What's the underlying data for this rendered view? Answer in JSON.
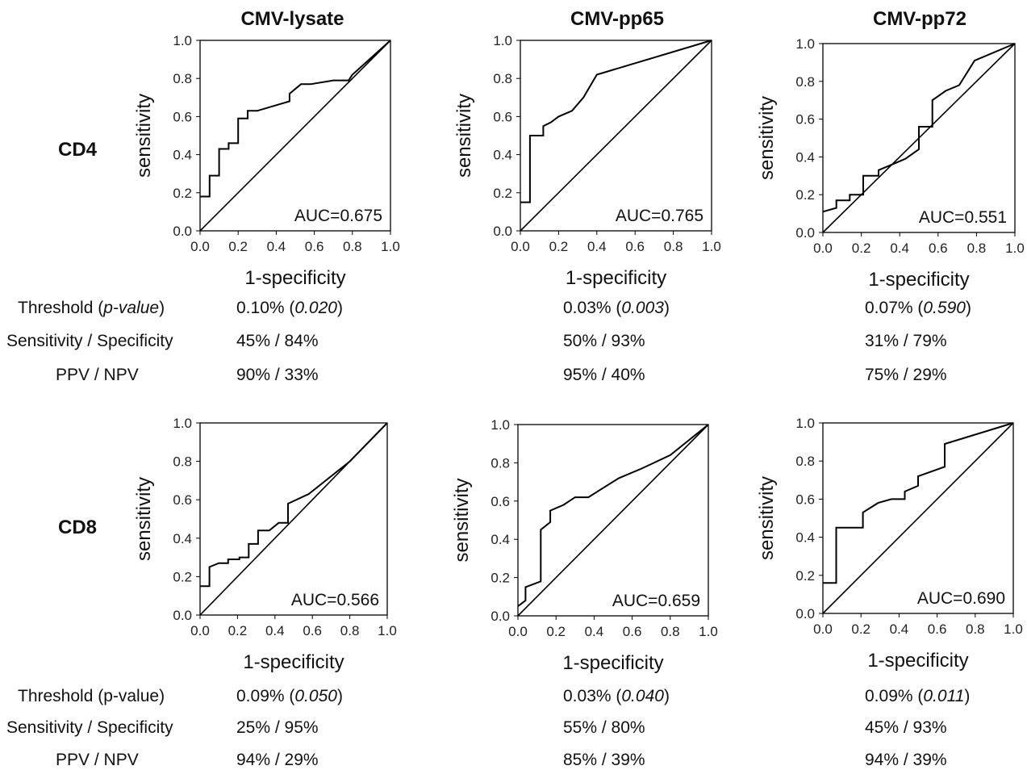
{
  "figure": {
    "columns": [
      "CMV-lysate",
      "CMV-pp65",
      "CMV-pp72"
    ],
    "rows": [
      "CD4",
      "CD8"
    ],
    "stat_labels_top": {
      "threshold_prefix": "Threshold (",
      "threshold_p": "p-value",
      "threshold_suffix": ")",
      "sens_spec": "Sensitivity / Specificity",
      "ppv_npv": "PPV / NPV"
    },
    "stat_labels_bottom": {
      "threshold": "Threshold (p-value)",
      "sens_spec": "Sensitivity / Specificity",
      "ppv_npv": "PPV / NPV"
    }
  },
  "stats": {
    "CD4": [
      {
        "threshold": "0.10%",
        "p": "0.020",
        "sens_spec": "45% / 84%",
        "ppv_npv": "90% / 33%"
      },
      {
        "threshold": "0.03%",
        "p": "0.003",
        "sens_spec": "50% / 93%",
        "ppv_npv": "95% / 40%"
      },
      {
        "threshold": "0.07%",
        "p": "0.590",
        "sens_spec": "31% / 79%",
        "ppv_npv": "75% / 29%"
      }
    ],
    "CD8": [
      {
        "threshold": "0.09%",
        "p": "0.050",
        "sens_spec": "25% / 95%",
        "ppv_npv": "94% / 29%"
      },
      {
        "threshold": "0.03%",
        "p": "0.040",
        "sens_spec": "55% / 80%",
        "ppv_npv": "85% / 39%"
      },
      {
        "threshold": "0.09%",
        "p": "0.011",
        "sens_spec": "45% / 93%",
        "ppv_npv": "94% / 39%"
      }
    ]
  },
  "chart_data": [
    {
      "type": "line",
      "row": "CD4",
      "title": "CMV-lysate",
      "xlabel": "1-specificity",
      "ylabel": "sensitivity",
      "xlim": [
        0,
        1
      ],
      "ylim": [
        0,
        1
      ],
      "grid": false,
      "annotation": "AUC=0.675",
      "xticks": [
        "0.0",
        "0.2",
        "0.4",
        "0.6",
        "0.8",
        "1.0"
      ],
      "yticks": [
        "0.0",
        "0.2",
        "0.4",
        "0.6",
        "0.8",
        "1.0"
      ],
      "roc": [
        [
          0,
          0.18
        ],
        [
          0.05,
          0.18
        ],
        [
          0.05,
          0.29
        ],
        [
          0.1,
          0.29
        ],
        [
          0.1,
          0.43
        ],
        [
          0.15,
          0.43
        ],
        [
          0.15,
          0.46
        ],
        [
          0.2,
          0.46
        ],
        [
          0.2,
          0.59
        ],
        [
          0.25,
          0.59
        ],
        [
          0.25,
          0.63
        ],
        [
          0.3,
          0.63
        ],
        [
          0.47,
          0.68
        ],
        [
          0.47,
          0.72
        ],
        [
          0.53,
          0.77
        ],
        [
          0.58,
          0.77
        ],
        [
          0.7,
          0.79
        ],
        [
          0.78,
          0.79
        ],
        [
          0.8,
          0.82
        ],
        [
          1,
          1
        ]
      ],
      "reference": [
        [
          0,
          0
        ],
        [
          1,
          1
        ]
      ]
    },
    {
      "type": "line",
      "row": "CD4",
      "title": "CMV-pp65",
      "xlabel": "1-specificity",
      "ylabel": "sensitivity",
      "xlim": [
        0,
        1
      ],
      "ylim": [
        0,
        1
      ],
      "grid": false,
      "annotation": "AUC=0.765",
      "xticks": [
        "0.0",
        "0.2",
        "0.4",
        "0.6",
        "0.8",
        "1.0"
      ],
      "yticks": [
        "0.0",
        "0.2",
        "0.4",
        "0.6",
        "0.8",
        "1.0"
      ],
      "roc": [
        [
          0,
          0.15
        ],
        [
          0.05,
          0.15
        ],
        [
          0.05,
          0.5
        ],
        [
          0.12,
          0.5
        ],
        [
          0.12,
          0.55
        ],
        [
          0.16,
          0.57
        ],
        [
          0.2,
          0.6
        ],
        [
          0.27,
          0.63
        ],
        [
          0.33,
          0.7
        ],
        [
          0.4,
          0.82
        ],
        [
          1,
          1
        ]
      ],
      "reference": [
        [
          0,
          0
        ],
        [
          1,
          1
        ]
      ]
    },
    {
      "type": "line",
      "row": "CD4",
      "title": "CMV-pp72",
      "xlabel": "1-specificity",
      "ylabel": "sensitivity",
      "xlim": [
        0,
        1
      ],
      "ylim": [
        0,
        1
      ],
      "grid": false,
      "annotation": "AUC=0.551",
      "xticks": [
        "0.0",
        "0.2",
        "0.4",
        "0.6",
        "0.8",
        "1.0"
      ],
      "yticks": [
        "0.0",
        "0.2",
        "0.4",
        "0.6",
        "0.8",
        "1.0"
      ],
      "roc": [
        [
          0,
          0.11
        ],
        [
          0.07,
          0.13
        ],
        [
          0.07,
          0.17
        ],
        [
          0.14,
          0.17
        ],
        [
          0.14,
          0.2
        ],
        [
          0.21,
          0.2
        ],
        [
          0.21,
          0.3
        ],
        [
          0.29,
          0.3
        ],
        [
          0.29,
          0.33
        ],
        [
          0.36,
          0.36
        ],
        [
          0.43,
          0.39
        ],
        [
          0.5,
          0.44
        ],
        [
          0.5,
          0.56
        ],
        [
          0.57,
          0.56
        ],
        [
          0.57,
          0.7
        ],
        [
          0.64,
          0.75
        ],
        [
          0.71,
          0.78
        ],
        [
          0.79,
          0.91
        ],
        [
          1,
          1
        ]
      ],
      "reference": [
        [
          0,
          0
        ],
        [
          1,
          1
        ]
      ]
    },
    {
      "type": "line",
      "row": "CD8",
      "title": "CMV-lysate",
      "xlabel": "1-specificity",
      "ylabel": "sensitivity",
      "xlim": [
        0,
        1
      ],
      "ylim": [
        0,
        1
      ],
      "grid": false,
      "annotation": "AUC=0.566",
      "xticks": [
        "0.0",
        "0.2",
        "0.4",
        "0.6",
        "0.8",
        "1.0"
      ],
      "yticks": [
        "0.0",
        "0.2",
        "0.4",
        "0.6",
        "0.8",
        "1.0"
      ],
      "roc": [
        [
          0,
          0.15
        ],
        [
          0.05,
          0.15
        ],
        [
          0.05,
          0.25
        ],
        [
          0.1,
          0.27
        ],
        [
          0.15,
          0.27
        ],
        [
          0.15,
          0.29
        ],
        [
          0.21,
          0.29
        ],
        [
          0.21,
          0.3
        ],
        [
          0.26,
          0.3
        ],
        [
          0.26,
          0.37
        ],
        [
          0.31,
          0.37
        ],
        [
          0.31,
          0.44
        ],
        [
          0.37,
          0.44
        ],
        [
          0.42,
          0.48
        ],
        [
          0.47,
          0.48
        ],
        [
          0.47,
          0.58
        ],
        [
          0.58,
          0.63
        ],
        [
          0.8,
          0.8
        ],
        [
          1,
          1
        ]
      ],
      "reference": [
        [
          0,
          0
        ],
        [
          1,
          1
        ]
      ]
    },
    {
      "type": "line",
      "row": "CD8",
      "title": "CMV-pp65",
      "xlabel": "1-specificity",
      "ylabel": "sensitivity",
      "xlim": [
        0,
        1
      ],
      "ylim": [
        0,
        1
      ],
      "grid": false,
      "annotation": "AUC=0.659",
      "xticks": [
        "0.0",
        "0.2",
        "0.4",
        "0.6",
        "0.8",
        "1.0"
      ],
      "yticks": [
        "0.0",
        "0.2",
        "0.4",
        "0.6",
        "0.8",
        "1.0"
      ],
      "roc": [
        [
          0,
          0.05
        ],
        [
          0.04,
          0.08
        ],
        [
          0.04,
          0.15
        ],
        [
          0.12,
          0.18
        ],
        [
          0.12,
          0.45
        ],
        [
          0.17,
          0.49
        ],
        [
          0.17,
          0.55
        ],
        [
          0.24,
          0.58
        ],
        [
          0.3,
          0.62
        ],
        [
          0.37,
          0.62
        ],
        [
          0.45,
          0.67
        ],
        [
          0.53,
          0.72
        ],
        [
          0.65,
          0.77
        ],
        [
          0.8,
          0.84
        ],
        [
          1,
          1
        ]
      ],
      "reference": [
        [
          0,
          0
        ],
        [
          1,
          1
        ]
      ]
    },
    {
      "type": "line",
      "row": "CD8",
      "title": "CMV-pp72",
      "xlabel": "1-specificity",
      "ylabel": "sensitivity",
      "xlim": [
        0,
        1
      ],
      "ylim": [
        0,
        1
      ],
      "grid": false,
      "annotation": "AUC=0.690",
      "xticks": [
        "0.0",
        "0.2",
        "0.4",
        "0.6",
        "0.8",
        "1.0"
      ],
      "yticks": [
        "0.0",
        "0.2",
        "0.4",
        "0.6",
        "0.8",
        "1.0"
      ],
      "roc": [
        [
          0,
          0.16
        ],
        [
          0.07,
          0.16
        ],
        [
          0.07,
          0.45
        ],
        [
          0.21,
          0.45
        ],
        [
          0.21,
          0.53
        ],
        [
          0.29,
          0.58
        ],
        [
          0.36,
          0.6
        ],
        [
          0.43,
          0.6
        ],
        [
          0.43,
          0.64
        ],
        [
          0.5,
          0.67
        ],
        [
          0.5,
          0.72
        ],
        [
          0.64,
          0.77
        ],
        [
          0.64,
          0.89
        ],
        [
          1,
          1
        ]
      ],
      "reference": [
        [
          0,
          0
        ],
        [
          1,
          1
        ]
      ]
    }
  ]
}
